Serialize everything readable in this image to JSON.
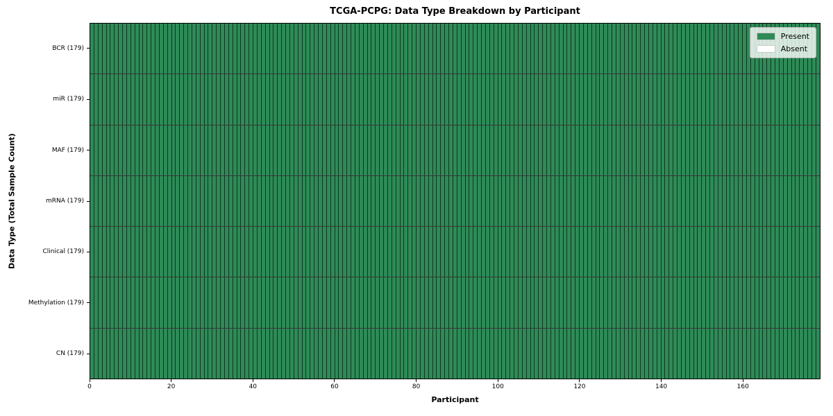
{
  "chart_data": {
    "type": "heatmap",
    "title": "TCGA-PCPG: Data Type Breakdown by Participant",
    "xlabel": "Participant",
    "ylabel": "Data Type (Total Sample Count)",
    "x_range": [
      0,
      179
    ],
    "x_ticks": [
      0,
      20,
      40,
      60,
      80,
      100,
      120,
      140,
      160
    ],
    "n_participants": 179,
    "grid": "cell-borders",
    "legend_position": "upper right",
    "legend": {
      "entries": [
        {
          "label": "Present",
          "color": "#2e8b57"
        },
        {
          "label": "Absent",
          "color": "#ffffff"
        }
      ]
    },
    "colors": {
      "present": "#2e8b57",
      "absent": "#ffffff",
      "cell_border": "rgba(0,0,0,0.62)",
      "row_separator": "rgba(0,0,0,0.78)"
    },
    "rows": [
      {
        "label": "BCR (179)",
        "name": "BCR",
        "total": 179,
        "present_count": 179,
        "absent_count": 0,
        "absent_indices": []
      },
      {
        "label": "miR (179)",
        "name": "miR",
        "total": 179,
        "present_count": 179,
        "absent_count": 0,
        "absent_indices": []
      },
      {
        "label": "MAF (179)",
        "name": "MAF",
        "total": 179,
        "present_count": 179,
        "absent_count": 0,
        "absent_indices": []
      },
      {
        "label": "mRNA (179)",
        "name": "mRNA",
        "total": 179,
        "present_count": 179,
        "absent_count": 0,
        "absent_indices": []
      },
      {
        "label": "Clinical (179)",
        "name": "Clinical",
        "total": 179,
        "present_count": 179,
        "absent_count": 0,
        "absent_indices": []
      },
      {
        "label": "Methylation (179)",
        "name": "Methylation",
        "total": 179,
        "present_count": 179,
        "absent_count": 0,
        "absent_indices": []
      },
      {
        "label": "CN (179)",
        "name": "CN",
        "total": 179,
        "present_count": 179,
        "absent_count": 0,
        "absent_indices": []
      }
    ]
  }
}
